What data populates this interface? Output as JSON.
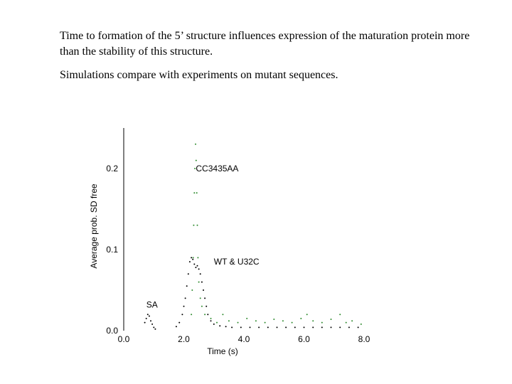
{
  "text": {
    "paragraph1": "Time to formation of the 5’ structure influences expression of the maturation protein more than the stability of this structure.",
    "paragraph2": "Simulations compare with experiments on mutant sequences."
  },
  "chart_data": {
    "type": "scatter",
    "xlabel": "Time (s)",
    "ylabel": "Average prob. SD free",
    "xlim": [
      0,
      8
    ],
    "ylim": [
      0,
      0.25
    ],
    "xticks": [
      "0.0",
      "2.0",
      "4.0",
      "6.0",
      "8.0"
    ],
    "yticks": [
      "0.0",
      "0.1",
      "0.2"
    ],
    "xtick_values": [
      0,
      2,
      4,
      6,
      8
    ],
    "ytick_values": [
      0,
      0.1,
      0.2
    ],
    "grid": false,
    "annotations": [
      {
        "text": "CC3435AA",
        "x": 2.4,
        "y": 0.2
      },
      {
        "text": "WT & U32C",
        "x": 3.0,
        "y": 0.085
      },
      {
        "text": "SA",
        "x": 0.75,
        "y": 0.032
      }
    ],
    "series": [
      {
        "color": "#2e8b2e",
        "x": [
          2.25,
          2.28,
          2.31,
          2.33,
          2.35,
          2.37,
          2.39,
          2.41,
          2.43,
          2.45,
          2.47,
          2.5,
          2.55,
          2.6,
          2.7,
          2.9,
          3.1,
          3.3,
          3.5,
          3.8,
          4.1,
          4.4,
          4.7,
          5.0,
          5.3,
          5.6,
          5.9,
          6.1,
          6.3,
          6.6,
          6.9,
          7.2,
          7.4,
          7.6,
          7.9
        ],
        "y": [
          0.02,
          0.05,
          0.09,
          0.13,
          0.17,
          0.2,
          0.23,
          0.21,
          0.17,
          0.13,
          0.09,
          0.06,
          0.04,
          0.03,
          0.02,
          0.015,
          0.01,
          0.02,
          0.012,
          0.01,
          0.015,
          0.012,
          0.01,
          0.014,
          0.012,
          0.01,
          0.015,
          0.02,
          0.012,
          0.01,
          0.014,
          0.02,
          0.01,
          0.012,
          0.008
        ]
      },
      {
        "color": "#000000",
        "x": [
          1.75,
          1.85,
          1.95,
          2.0,
          2.05,
          2.1,
          2.15,
          2.2,
          2.25,
          2.3,
          2.35,
          2.4,
          2.45,
          2.5,
          2.55,
          2.6,
          2.65,
          2.7,
          2.75,
          2.8,
          2.9,
          3.0,
          3.2,
          3.4,
          3.6,
          3.9,
          4.2,
          4.5,
          4.8,
          5.1,
          5.4,
          5.7,
          6.0,
          6.3,
          6.6,
          6.9,
          7.2,
          7.5,
          7.8
        ],
        "y": [
          0.005,
          0.01,
          0.02,
          0.03,
          0.04,
          0.055,
          0.07,
          0.085,
          0.09,
          0.088,
          0.082,
          0.078,
          0.08,
          0.076,
          0.07,
          0.06,
          0.05,
          0.04,
          0.03,
          0.02,
          0.012,
          0.008,
          0.006,
          0.005,
          0.004,
          0.004,
          0.004,
          0.004,
          0.004,
          0.004,
          0.004,
          0.004,
          0.004,
          0.004,
          0.004,
          0.004,
          0.004,
          0.004,
          0.004
        ]
      },
      {
        "color": "#000000",
        "x": [
          0.7,
          0.75,
          0.8,
          0.85,
          0.9,
          0.95,
          1.0,
          1.05
        ],
        "y": [
          0.01,
          0.015,
          0.02,
          0.018,
          0.012,
          0.008,
          0.004,
          0.002
        ]
      }
    ]
  }
}
